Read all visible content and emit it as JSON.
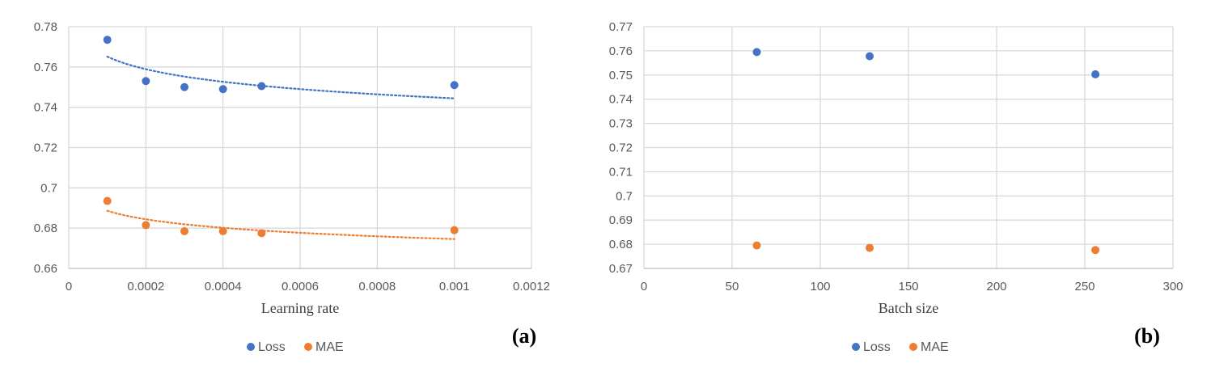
{
  "chart_data": [
    {
      "type": "scatter",
      "panel_label": "(a)",
      "xlabel": "Learning rate",
      "xlim": [
        0,
        0.0012
      ],
      "ylim": [
        0.66,
        0.78
      ],
      "x_ticks": [
        "0",
        "0.0002",
        "0.0004",
        "0.0006",
        "0.0008",
        "0.001",
        "0.0012"
      ],
      "y_ticks": [
        "0.66",
        "0.68",
        "0.7",
        "0.72",
        "0.74",
        "0.76",
        "0.78"
      ],
      "grid": true,
      "legend_position": "bottom",
      "trendline": "logarithmic",
      "series": [
        {
          "name": "Loss",
          "color": "#4472C4",
          "x": [
            0.0001,
            0.0002,
            0.0003,
            0.0004,
            0.0005,
            0.001
          ],
          "y": [
            0.7735,
            0.753,
            0.75,
            0.749,
            0.7505,
            0.751
          ]
        },
        {
          "name": "MAE",
          "color": "#ED7D31",
          "x": [
            0.0001,
            0.0002,
            0.0003,
            0.0004,
            0.0005,
            0.001
          ],
          "y": [
            0.6935,
            0.6815,
            0.6785,
            0.6785,
            0.6775,
            0.679
          ]
        }
      ]
    },
    {
      "type": "scatter",
      "panel_label": "(b)",
      "xlabel": "Batch size",
      "xlim": [
        0,
        300
      ],
      "ylim": [
        0.67,
        0.77
      ],
      "x_ticks": [
        "0",
        "50",
        "100",
        "150",
        "200",
        "250",
        "300"
      ],
      "y_ticks": [
        "0.67",
        "0.68",
        "0.69",
        "0.7",
        "0.71",
        "0.72",
        "0.73",
        "0.74",
        "0.75",
        "0.76",
        "0.77"
      ],
      "grid": true,
      "legend_position": "bottom",
      "series": [
        {
          "name": "Loss",
          "color": "#4472C4",
          "x": [
            64,
            128,
            256
          ],
          "y": [
            0.7595,
            0.7578,
            0.7503
          ]
        },
        {
          "name": "MAE",
          "color": "#ED7D31",
          "x": [
            64,
            128,
            256
          ],
          "y": [
            0.6795,
            0.6785,
            0.6776
          ]
        }
      ]
    }
  ]
}
